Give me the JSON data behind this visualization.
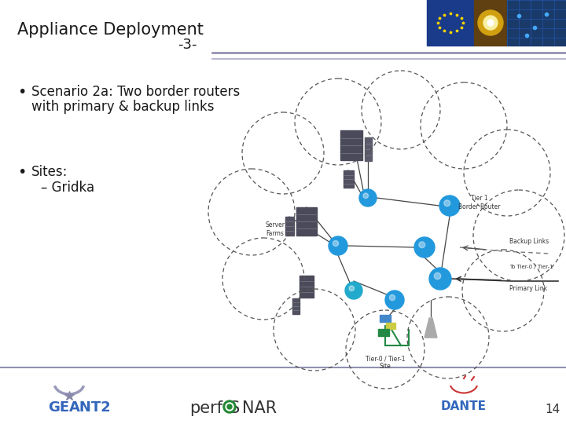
{
  "title": "Appliance Deployment",
  "subtitle": "-3-",
  "bullet1": "Scenario 2a: Two border routers",
  "bullet1b": "with primary & backup links",
  "bullet2": "Sites:",
  "bullet2b": "– Gridka",
  "page_number": "14",
  "bg_color": "#ffffff",
  "title_color": "#1a1a1a",
  "text_color": "#1a1a1a",
  "header_line_color1": "#8888aa",
  "header_line_color2": "#aaaacc",
  "footer_line_color": "#9090b0",
  "diagram_label_color": "#333333",
  "cloud_edge_color": "#555555",
  "router_color": "#2299dd",
  "switch_color": "#22aacc",
  "server_color": "#505060",
  "green_color": "#228844",
  "link_color": "#444444",
  "geant_color": "#3366bb",
  "dante_color": "#3366bb",
  "perf_color": "#333333",
  "perf_circle_color": "#228833"
}
